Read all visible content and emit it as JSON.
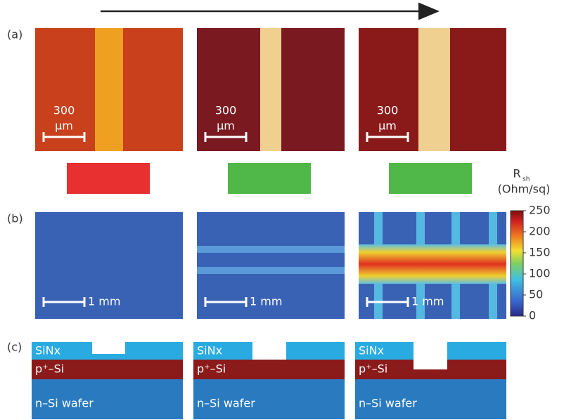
{
  "panel_labels": [
    "(a)",
    "(b)",
    "(c)"
  ],
  "microscope": [
    {
      "scale_value": "300",
      "scale_unit": "µm"
    },
    {
      "scale_value": "300",
      "scale_unit": "µm"
    },
    {
      "scale_value": "300",
      "scale_unit": "µm"
    }
  ],
  "rsh_maps": [
    {
      "scale": "1 mm"
    },
    {
      "scale": "1 mm"
    },
    {
      "scale": "1 mm"
    }
  ],
  "colorbar": {
    "title": "R",
    "title_sub": "sh",
    "unit": "(Ohm/sq)",
    "ticks": [
      0,
      50,
      100,
      150,
      200,
      250
    ]
  },
  "cross_sections": [
    {
      "layers": [
        "SiNx",
        "p⁺–Si",
        "n–Si wafer"
      ]
    },
    {
      "layers": [
        "SiNx",
        "p⁺–Si",
        "n–Si wafer"
      ]
    },
    {
      "layers": [
        "SiNx",
        "p⁺–Si",
        "n–Si wafer"
      ]
    }
  ]
}
